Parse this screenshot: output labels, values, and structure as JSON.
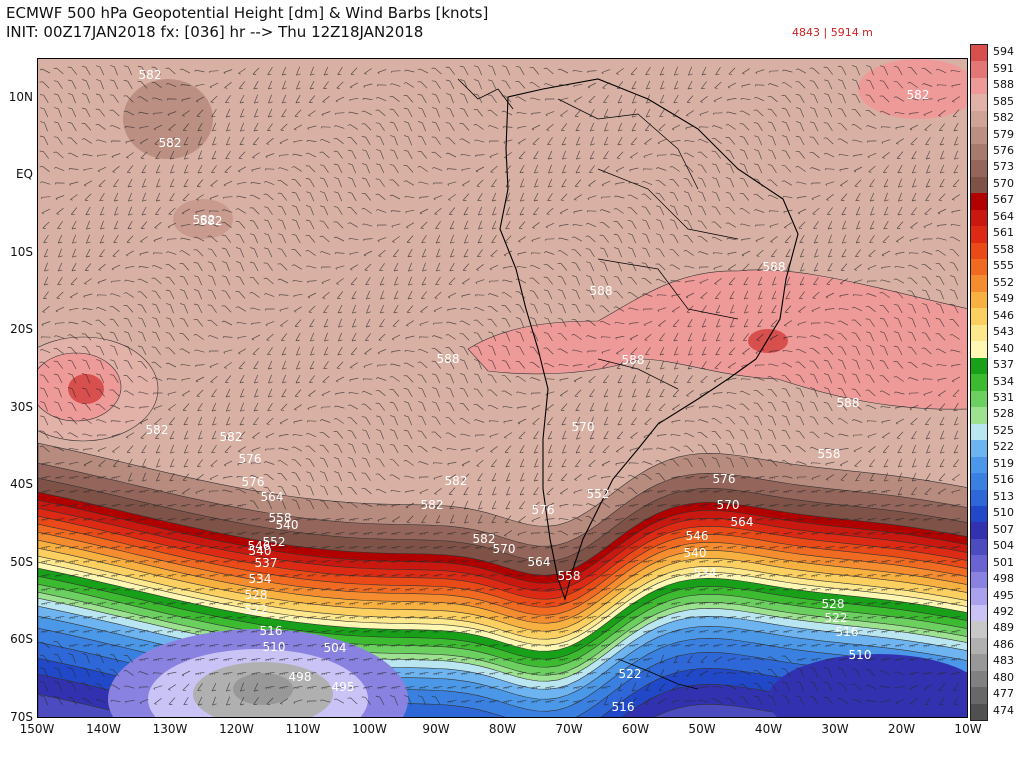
{
  "header": {
    "title": "ECMWF 500 hPa Geopotential Height [dm] & Wind Barbs [knots]",
    "init": "INIT: 00Z17JAN2018 fx: [036] hr --> Thu 12Z18JAN2018",
    "range": "4843 | 5914 m",
    "range_color": "#cc2222"
  },
  "axes": {
    "lat_labels": [
      "10N",
      "EQ",
      "10S",
      "20S",
      "30S",
      "40S",
      "50S",
      "60S",
      "70S"
    ],
    "lon_labels": [
      "150W",
      "140W",
      "130W",
      "120W",
      "110W",
      "100W",
      "90W",
      "80W",
      "70W",
      "60W",
      "50W",
      "40W",
      "30W",
      "20W",
      "10W"
    ]
  },
  "colorbar": {
    "levels": [
      "594",
      "591",
      "588",
      "585",
      "582",
      "579",
      "576",
      "573",
      "570",
      "567",
      "564",
      "561",
      "558",
      "555",
      "552",
      "549",
      "546",
      "543",
      "540",
      "537",
      "534",
      "531",
      "528",
      "525",
      "522",
      "519",
      "516",
      "513",
      "510",
      "507",
      "504",
      "501",
      "498",
      "495",
      "492",
      "489",
      "486",
      "483",
      "480",
      "477",
      "474"
    ],
    "colors": [
      "#d8504e",
      "#e27776",
      "#ee9a98",
      "#e2b1a8",
      "#cfa395",
      "#bb8f82",
      "#a77a6e",
      "#94665b",
      "#7e5247",
      "#b00000",
      "#c81810",
      "#dd2a14",
      "#ea4a18",
      "#f06a22",
      "#f58d30",
      "#f8b040",
      "#fbcf60",
      "#fde88e",
      "#fff7b4",
      "#18a018",
      "#3cbb30",
      "#6cd060",
      "#9de290",
      "#b9e6f0",
      "#6eb4f0",
      "#4c98e8",
      "#3a80e0",
      "#2e68d8",
      "#2048c8",
      "#3232b0",
      "#4c4cc0",
      "#6a64d2",
      "#8a82e0",
      "#aaa2ec",
      "#cac4f6",
      "#c8c8c8",
      "#b0b0b0",
      "#989898",
      "#808080",
      "#686868",
      "#505050"
    ]
  },
  "map": {
    "contour_labels": [
      "582",
      "582",
      "582",
      "582",
      "588",
      "588",
      "588",
      "588",
      "588",
      "582",
      "582",
      "576",
      "582",
      "576",
      "564",
      "558",
      "552",
      "546",
      "540",
      "540",
      "537",
      "534",
      "528",
      "522",
      "516",
      "510",
      "504",
      "498",
      "495",
      "582",
      "570",
      "564",
      "558",
      "552",
      "576",
      "570",
      "564",
      "558",
      "570",
      "576",
      "546",
      "540",
      "534",
      "528",
      "522",
      "516",
      "510",
      "522",
      "516",
      "582",
      "582"
    ],
    "colors": {
      "land_outline": "#000000",
      "contour": "#333333",
      "barb": "#222222",
      "label": "#ffffff"
    }
  }
}
